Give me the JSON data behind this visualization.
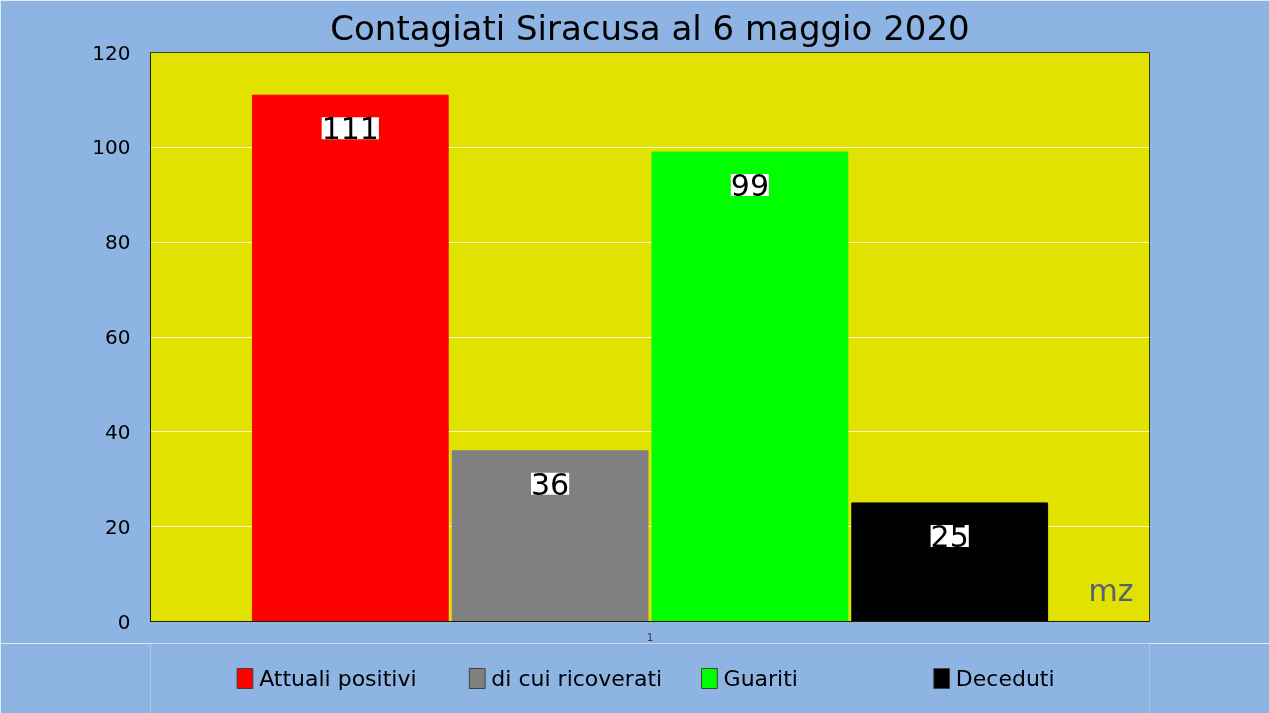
{
  "chart_data": {
    "type": "bar",
    "title": "Contagiati Siracusa al 6 maggio 2020",
    "categories": [
      "1"
    ],
    "series": [
      {
        "name": "Attuali positivi",
        "color": "#ff0000",
        "values": [
          111
        ]
      },
      {
        "name": "di cui ricoverati",
        "color": "#808080",
        "values": [
          36
        ]
      },
      {
        "name": "Guariti",
        "color": "#00ff00",
        "values": [
          99
        ]
      },
      {
        "name": "Deceduti",
        "color": "#000000",
        "values": [
          25
        ]
      }
    ],
    "ylim": [
      0,
      120
    ],
    "yticks": [
      0,
      20,
      40,
      60,
      80,
      100,
      120
    ],
    "grid": "y",
    "legend": "bottom",
    "data_labels": true,
    "annotations": [
      "mz"
    ]
  }
}
